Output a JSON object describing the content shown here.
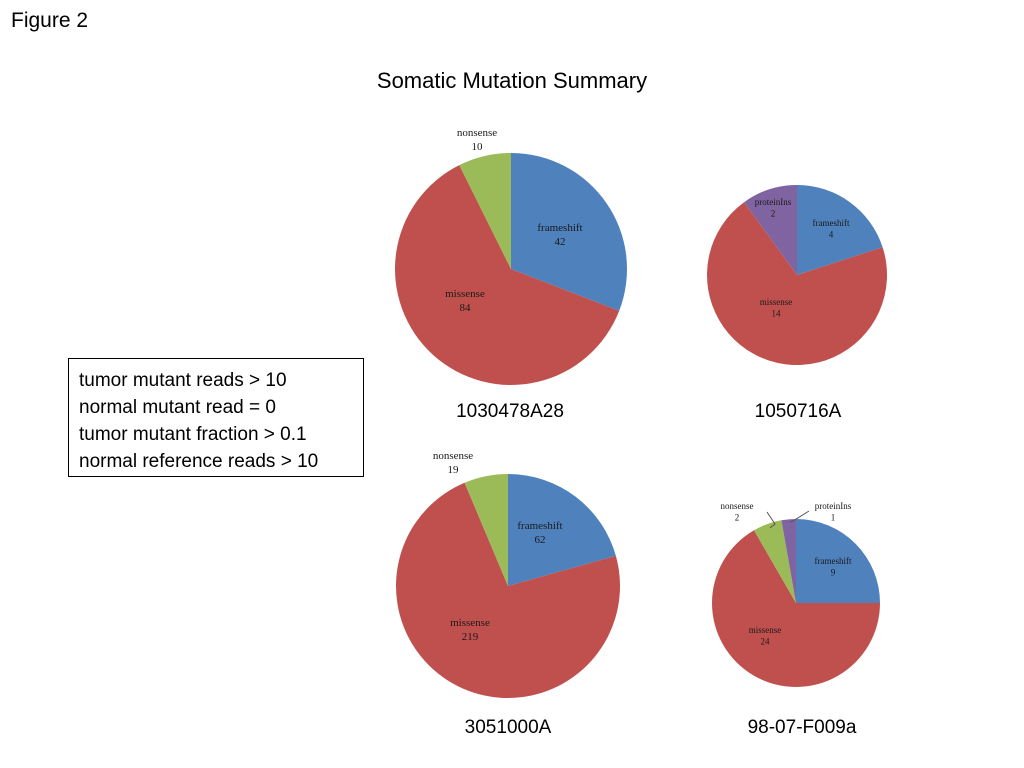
{
  "figure_label": "Figure 2",
  "title": "Somatic Mutation Summary",
  "criteria": [
    "tumor mutant reads > 10",
    "normal mutant read = 0",
    "tumor mutant fraction > 0.1",
    "normal reference reads > 10"
  ],
  "colors": {
    "frameshift": "#4f81bd",
    "missense": "#c0504d",
    "nonsense": "#9bbb59",
    "proteinIns": "#8064a2"
  },
  "chart_data": [
    {
      "type": "pie",
      "sample": "1030478A28",
      "slices": [
        {
          "label": "frameshift",
          "value": 42
        },
        {
          "label": "missense",
          "value": 84
        },
        {
          "label": "nonsense",
          "value": 10
        }
      ]
    },
    {
      "type": "pie",
      "sample": "1050716A",
      "slices": [
        {
          "label": "frameshift",
          "value": 4
        },
        {
          "label": "missense",
          "value": 14
        },
        {
          "label": "proteinIns",
          "value": 2
        }
      ]
    },
    {
      "type": "pie",
      "sample": "3051000A",
      "slices": [
        {
          "label": "frameshift",
          "value": 62
        },
        {
          "label": "missense",
          "value": 219
        },
        {
          "label": "nonsense",
          "value": 19
        }
      ]
    },
    {
      "type": "pie",
      "sample": "98-07-F009a",
      "slices": [
        {
          "label": "frameshift",
          "value": 9
        },
        {
          "label": "missense",
          "value": 24
        },
        {
          "label": "nonsense",
          "value": 2
        },
        {
          "label": "proteinIns",
          "value": 1
        }
      ]
    }
  ]
}
